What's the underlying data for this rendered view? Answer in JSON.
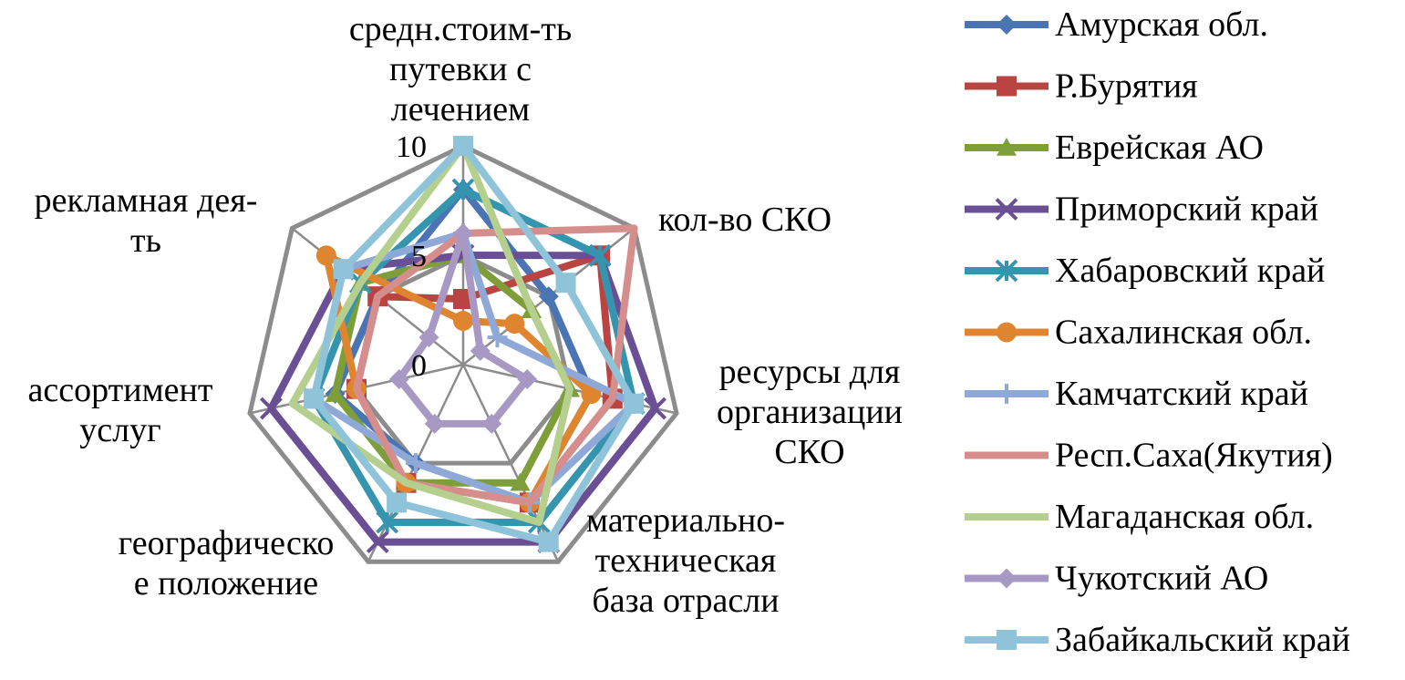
{
  "chart_data": {
    "type": "radar",
    "axes": [
      "средн.стоим-ть путевки с лечением",
      "кол-во СКО",
      "ресурсы для организации СКО",
      "материально-техническая база отрасли",
      "географическое положение",
      "ассортимент услуг",
      "рекламная дея-ть"
    ],
    "axis_label_lines": [
      [
        "средн.стоим-ть",
        "путевки с",
        "лечением"
      ],
      [
        "кол-во СКО"
      ],
      [
        "ресурсы для",
        "организации",
        "СКО"
      ],
      [
        "материально-",
        "техническая",
        "база отрасли"
      ],
      [
        "географическо",
        "е положение"
      ],
      [
        "ассортимент",
        "услуг"
      ],
      [
        "рекламная дея-",
        "ть"
      ]
    ],
    "r_range": [
      0,
      10
    ],
    "ticks": [
      0,
      5,
      10
    ],
    "tick_labels": [
      "0",
      "5",
      "10"
    ],
    "grid": true,
    "legend_position": "right",
    "series": [
      {
        "name": "Амурская обл.",
        "color": "#4a74b3",
        "marker": "diamond",
        "values": [
          8,
          5,
          6,
          7,
          5,
          6,
          5
        ]
      },
      {
        "name": "Р.Бурятия",
        "color": "#b94441",
        "marker": "square",
        "values": [
          3,
          8,
          7,
          7,
          6,
          5,
          5
        ]
      },
      {
        "name": "Еврейская АО",
        "color": "#7e9e3a",
        "marker": "triangle",
        "values": [
          5,
          4,
          5,
          6,
          6,
          6,
          6
        ]
      },
      {
        "name": "Приморский край",
        "color": "#6a4f95",
        "marker": "x",
        "values": [
          5,
          8,
          9,
          9,
          9,
          9,
          7
        ]
      },
      {
        "name": "Хабаровский край",
        "color": "#3595ae",
        "marker": "asterisk",
        "values": [
          8,
          8,
          8,
          8,
          8,
          7,
          6
        ]
      },
      {
        "name": "Сахалинская обл.",
        "color": "#e0852f",
        "marker": "circle",
        "values": [
          2,
          3,
          6,
          7,
          6,
          5,
          8
        ]
      },
      {
        "name": "Камчатский край",
        "color": "#8ea9d8",
        "marker": "plus",
        "values": [
          6,
          2,
          8,
          7,
          5,
          7,
          7
        ]
      },
      {
        "name": "Респ.Саха(Якутия)",
        "color": "#d68e8c",
        "marker": "none",
        "values": [
          6,
          10,
          7,
          7,
          6,
          5,
          5
        ]
      },
      {
        "name": "Магаданская обл.",
        "color": "#b5cf8e",
        "marker": "none",
        "values": [
          10,
          4,
          5,
          8,
          6,
          8,
          6
        ]
      },
      {
        "name": "Чукотский АО",
        "color": "#a899c4",
        "marker": "diamond",
        "values": [
          6,
          1,
          3,
          3,
          3,
          3,
          2
        ]
      },
      {
        "name": "Забайкальский край",
        "color": "#8ec3d9",
        "marker": "square",
        "values": [
          10,
          6,
          8,
          9,
          7,
          7,
          7
        ]
      }
    ]
  }
}
